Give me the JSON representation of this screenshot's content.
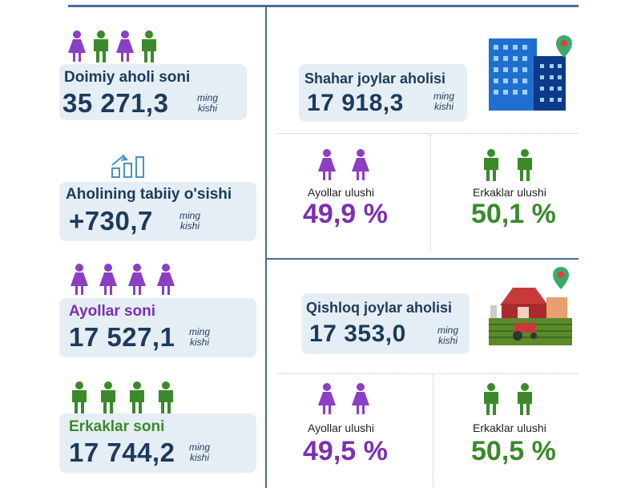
{
  "colors": {
    "purple": "#7a2fb5",
    "green": "#3a8a2a",
    "dark_blue": "#1e3a5c",
    "card_bg": "#e6eef5"
  },
  "left": {
    "total": {
      "title": "Doimiy aholi soni",
      "value": "35 271,3",
      "unit_top": "ming",
      "unit_bottom": "kishi"
    },
    "growth": {
      "title": "Aholining tabiiy o'sishi",
      "value": "+730,7",
      "unit_top": "ming",
      "unit_bottom": "kishi"
    },
    "women": {
      "title": "Ayollar soni",
      "value": "17 527,1",
      "unit_top": "ming",
      "unit_bottom": "kishi"
    },
    "men": {
      "title": "Erkaklar soni",
      "value": "17 744,2",
      "unit_top": "ming",
      "unit_bottom": "kishi"
    }
  },
  "urban": {
    "title": "Shahar joylar aholisi",
    "value": "17 918,3",
    "unit_top": "ming",
    "unit_bottom": "kishi",
    "women_label": "Ayollar ulushi",
    "women_value": "49,9 %",
    "men_label": "Erkaklar ulushi",
    "men_value": "50,1 %"
  },
  "rural": {
    "title": "Qishloq joylar aholisi",
    "value": "17 353,0",
    "unit_top": "ming",
    "unit_bottom": "kishi",
    "women_label": "Ayollar ulushi",
    "women_value": "49,5 %",
    "men_label": "Erkaklar ulushi",
    "men_value": "50,5 %"
  }
}
